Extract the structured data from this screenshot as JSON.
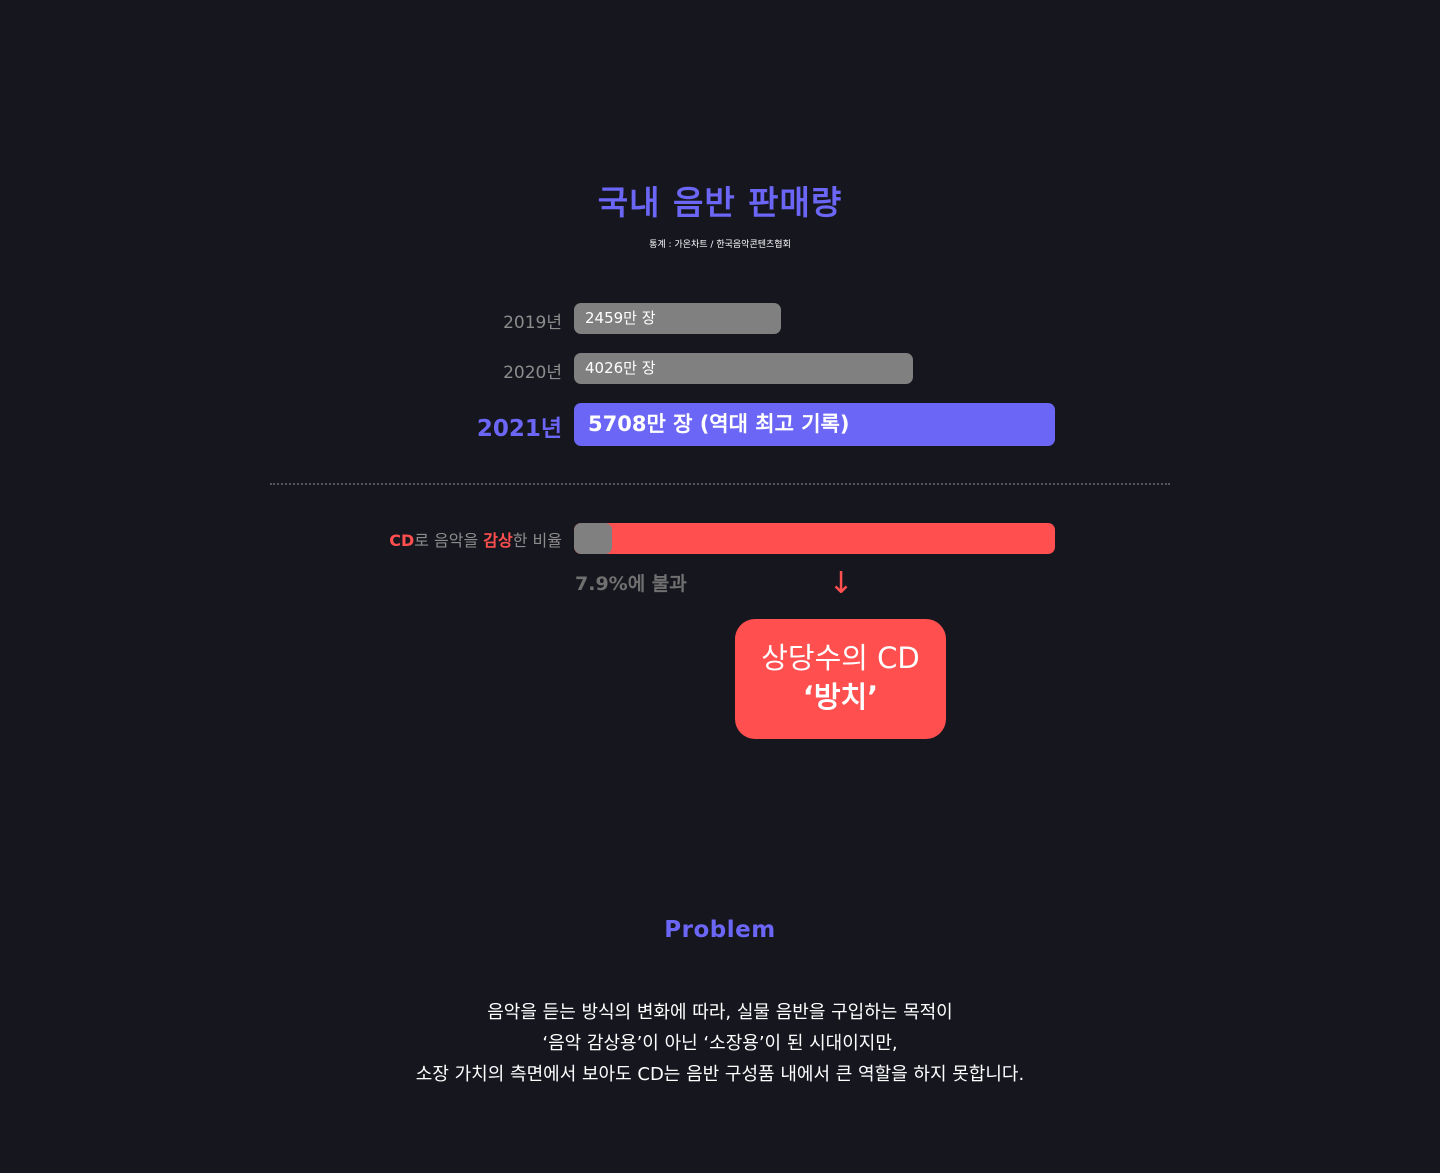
{
  "chart_data": {
    "type": "bar",
    "orientation": "horizontal",
    "title": "국내 음반 판매량",
    "source": "통계 : 가온차트 / 한국음악콘텐츠협회",
    "unit": "만 장",
    "categories": [
      "2019년",
      "2020년",
      "2021년"
    ],
    "values": [
      2459,
      4026,
      5708
    ],
    "data_labels": [
      "2459만 장",
      "4026만 장",
      "5708만 장 (역대 최고 기록)"
    ],
    "highlight_index": 2,
    "colors": {
      "default": "#808080",
      "highlight": "#6b66f5"
    }
  },
  "ratio": {
    "label_parts": [
      {
        "text": "CD",
        "highlight": true
      },
      {
        "text": "로 음악을 ",
        "highlight": false
      },
      {
        "text": "감상",
        "highlight": true
      },
      {
        "text": "한 비율",
        "highlight": false
      }
    ],
    "value": 7.9,
    "note": "7.9%에 불과",
    "colors": {
      "track": "#ff4f4f",
      "fill": "#808080"
    }
  },
  "arrow": "↓",
  "callout": {
    "line1": "상당수의 CD",
    "line2": "‘방치’"
  },
  "problem": {
    "heading": "Problem",
    "lines": [
      "음악을 듣는 방식의 변화에 따라, 실물 음반을 구입하는 목적이",
      "‘음악 감상용’이 아닌 ‘소장용’이 된 시대이지만,",
      "소장 가치의 측면에서 보아도 CD는 음반 구성품 내에서 큰 역할을 하지 못합니다."
    ]
  }
}
